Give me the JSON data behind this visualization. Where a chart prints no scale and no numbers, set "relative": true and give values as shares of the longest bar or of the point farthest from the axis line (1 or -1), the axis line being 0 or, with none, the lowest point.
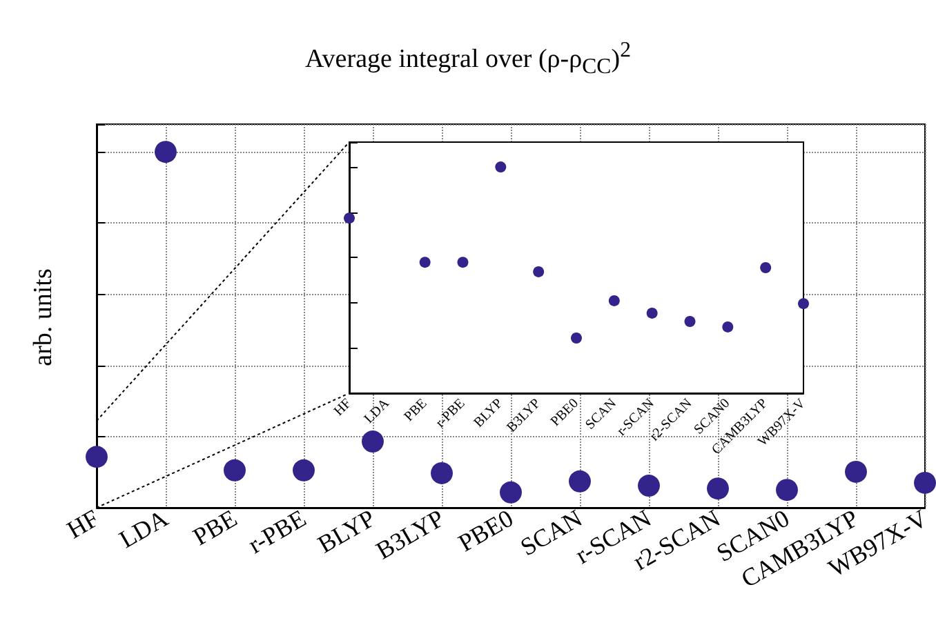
{
  "chart_data": [
    {
      "type": "scatter",
      "title": "Average integral over (ρ-ρ$_{CC}$)$^{2}$",
      "ylabel": "arb. units",
      "relative": true,
      "grid": true,
      "marker": "circle",
      "categories": [
        "HF",
        "LDA",
        "PBE",
        "r-PBE",
        "BLYP",
        "B3LYP",
        "PBE0",
        "SCAN",
        "r-SCAN",
        "r2-SCAN",
        "SCAN0",
        "CAMB3LYP",
        "WB97X-V"
      ],
      "series": [
        {
          "color": "#32248a",
          "values": [
            0.143,
            1,
            0.105,
            0.105,
            0.186,
            0.097,
            0.043,
            0.074,
            0.062,
            0.054,
            0.05,
            0.101,
            0.07
          ]
        }
      ]
    },
    {
      "type": "scatter",
      "relative": true,
      "grid": false,
      "marker": "circle",
      "categories": [
        "HF",
        "LDA",
        "PBE",
        "r-PBE",
        "BLYP",
        "B3LYP",
        "PBE0",
        "SCAN",
        "r-SCAN",
        "r2-SCAN",
        "SCAN0",
        "CAMB3LYP",
        "WB97X-V"
      ],
      "series": [
        {
          "color": "#32248a",
          "values": [
            0.774,
            null,
            0.579,
            0.579,
            1,
            0.537,
            0.244,
            0.409,
            0.354,
            0.317,
            0.293,
            0.555,
            0.396
          ]
        }
      ]
    }
  ]
}
